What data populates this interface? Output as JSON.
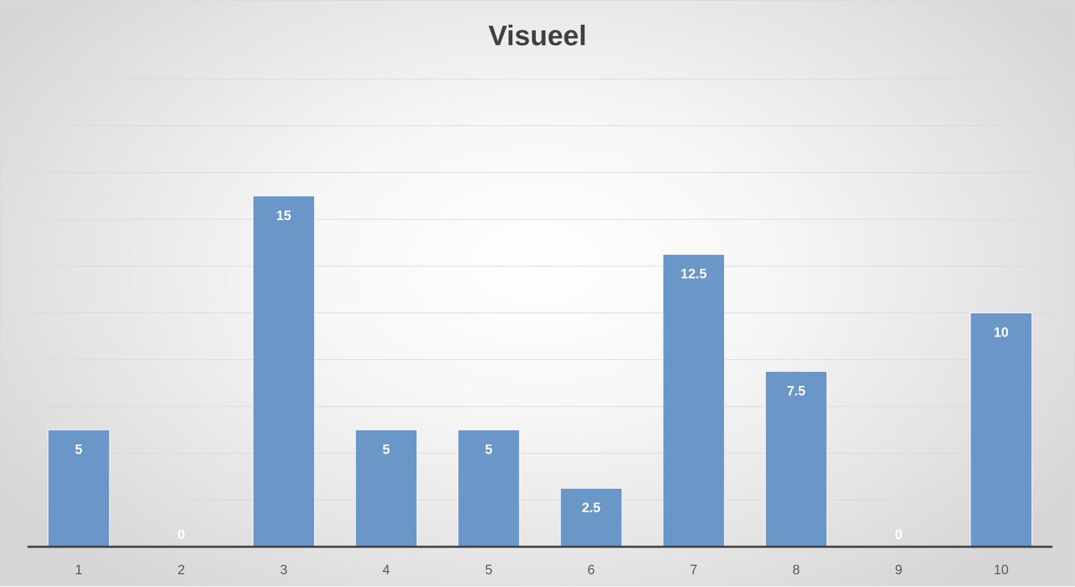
{
  "chart_data": {
    "type": "bar",
    "title": "Visueel",
    "xlabel": "",
    "ylabel": "",
    "categories": [
      "1",
      "2",
      "3",
      "4",
      "5",
      "6",
      "7",
      "8",
      "9",
      "10"
    ],
    "values": [
      5,
      0,
      15,
      5,
      5,
      2.5,
      12.5,
      7.5,
      0,
      10
    ],
    "data_labels": [
      "5",
      "0",
      "15",
      "5",
      "5",
      "2.5",
      "12.5",
      "7.5",
      "0",
      "10"
    ],
    "ylim": [
      0,
      20
    ],
    "y_gridline_step": 2,
    "y_axis_labels_visible": false,
    "grid": true,
    "legend": "none",
    "colors": {
      "bar": "#6a96c8",
      "bar_border": "#ffffff",
      "gridline": "#d9d9d9",
      "axis_line": "#404040",
      "data_label": "#ffffff",
      "tick_label": "#595959",
      "title": "#404040"
    }
  }
}
